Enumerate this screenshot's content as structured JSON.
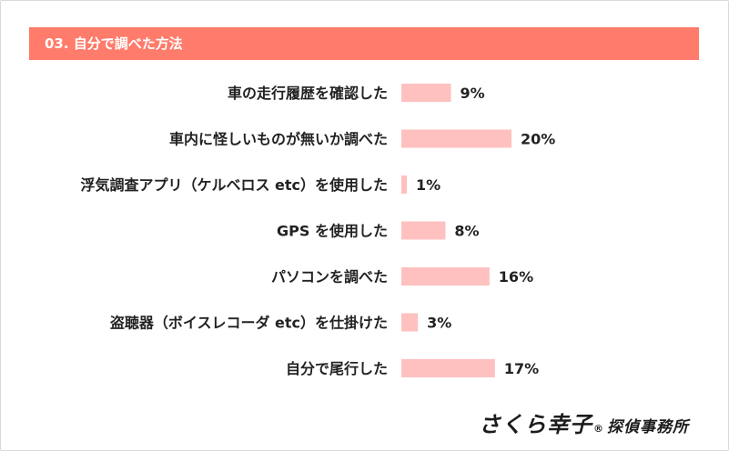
{
  "header": {
    "title": "03. 自分で調べた方法"
  },
  "chart_data": {
    "type": "bar",
    "orientation": "horizontal",
    "categories": [
      "車の走行履歴を確認した",
      "車内に怪しいものが無いか調べた",
      "浮気調査アプリ（ケルベロス etc）を使用した",
      "GPS を使用した",
      "パソコンを調べた",
      "盗聴器（ボイスレコーダ etc）を仕掛けた",
      "自分で尾行した"
    ],
    "values": [
      9,
      20,
      1,
      8,
      16,
      3,
      17
    ],
    "value_labels": [
      "9%",
      "20%",
      "1%",
      "8%",
      "16%",
      "3%",
      "17%"
    ],
    "unit": "%",
    "bar_color": "#ffc0c0",
    "grid": false
  },
  "brand": {
    "main": "さくら幸子",
    "mark": "®",
    "sub": "探偵事務所"
  },
  "colors": {
    "header_bg": "#ff7b6b",
    "bar": "#ffc0c0",
    "text": "#222222"
  }
}
